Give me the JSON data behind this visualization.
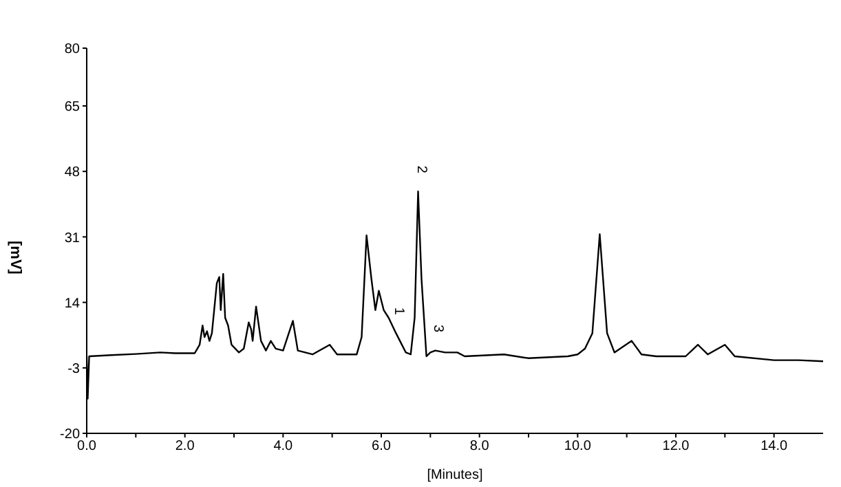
{
  "chart_data": {
    "type": "line",
    "xlabel": "[Minutes]",
    "ylabel": "[mV]",
    "xlim": [
      0,
      15
    ],
    "ylim": [
      -20,
      80
    ],
    "xticks": [
      {
        "value": 0,
        "label": "0.0"
      },
      {
        "value": 1,
        "label": null
      },
      {
        "value": 2,
        "label": "2.0"
      },
      {
        "value": 3,
        "label": null
      },
      {
        "value": 4,
        "label": "4.0"
      },
      {
        "value": 5,
        "label": null
      },
      {
        "value": 6,
        "label": "6.0"
      },
      {
        "value": 7,
        "label": null
      },
      {
        "value": 8,
        "label": "8.0"
      },
      {
        "value": 9,
        "label": null
      },
      {
        "value": 10,
        "label": "10.0"
      },
      {
        "value": 11,
        "label": null
      },
      {
        "value": 12,
        "label": "12.0"
      },
      {
        "value": 13,
        "label": null
      },
      {
        "value": 14,
        "label": "14.0"
      }
    ],
    "yticks": [
      -20,
      -3,
      14,
      31,
      48,
      65,
      80
    ],
    "grid": false,
    "marker": "none",
    "line_style": "solid",
    "annotations": [
      {
        "text": "1",
        "x": 6.3,
        "y": 6
      },
      {
        "text": "2",
        "x": 6.75,
        "y": 42.8
      },
      {
        "text": "3",
        "x": 7.1,
        "y": 1.5
      }
    ],
    "series": [
      {
        "color": "#000000",
        "x": [
          0,
          0.02,
          0.05,
          0.5,
          1.0,
          1.5,
          1.8,
          2.2,
          2.3,
          2.36,
          2.4,
          2.45,
          2.5,
          2.55,
          2.65,
          2.7,
          2.73,
          2.78,
          2.82,
          2.88,
          2.95,
          3.1,
          3.2,
          3.3,
          3.35,
          3.38,
          3.45,
          3.55,
          3.65,
          3.75,
          3.85,
          4.0,
          4.2,
          4.3,
          4.6,
          4.95,
          5.1,
          5.5,
          5.6,
          5.7,
          5.8,
          5.88,
          5.95,
          6.05,
          6.15,
          6.3,
          6.5,
          6.6,
          6.68,
          6.75,
          6.82,
          6.92,
          7.0,
          7.1,
          7.3,
          7.55,
          7.7,
          8.5,
          9,
          9.8,
          10.0,
          10.15,
          10.3,
          10.45,
          10.6,
          10.75,
          11.1,
          11.3,
          11.6,
          12.2,
          12.45,
          12.65,
          13.0,
          13.2,
          14.0,
          14.5,
          15
        ],
        "values": [
          0,
          -11,
          0,
          0.3,
          0.6,
          1,
          0.8,
          0.8,
          3,
          8,
          5,
          6.5,
          4,
          6,
          19,
          20.6,
          12,
          21.4,
          10,
          8,
          3,
          1,
          2,
          8.8,
          7,
          4,
          12.9,
          4,
          1.5,
          4,
          2,
          1.5,
          9.2,
          1.5,
          0.5,
          3,
          0.5,
          0.5,
          5,
          31.4,
          20,
          12,
          17,
          12,
          10,
          6,
          1,
          0.5,
          10,
          42.8,
          20,
          0,
          1,
          1.5,
          1,
          1,
          0,
          0.5,
          -0.5,
          0,
          0.5,
          2,
          6,
          31.7,
          6,
          1,
          4,
          0.5,
          0,
          0,
          3,
          0.5,
          3,
          0,
          -1,
          -1,
          -1.3
        ]
      }
    ]
  }
}
